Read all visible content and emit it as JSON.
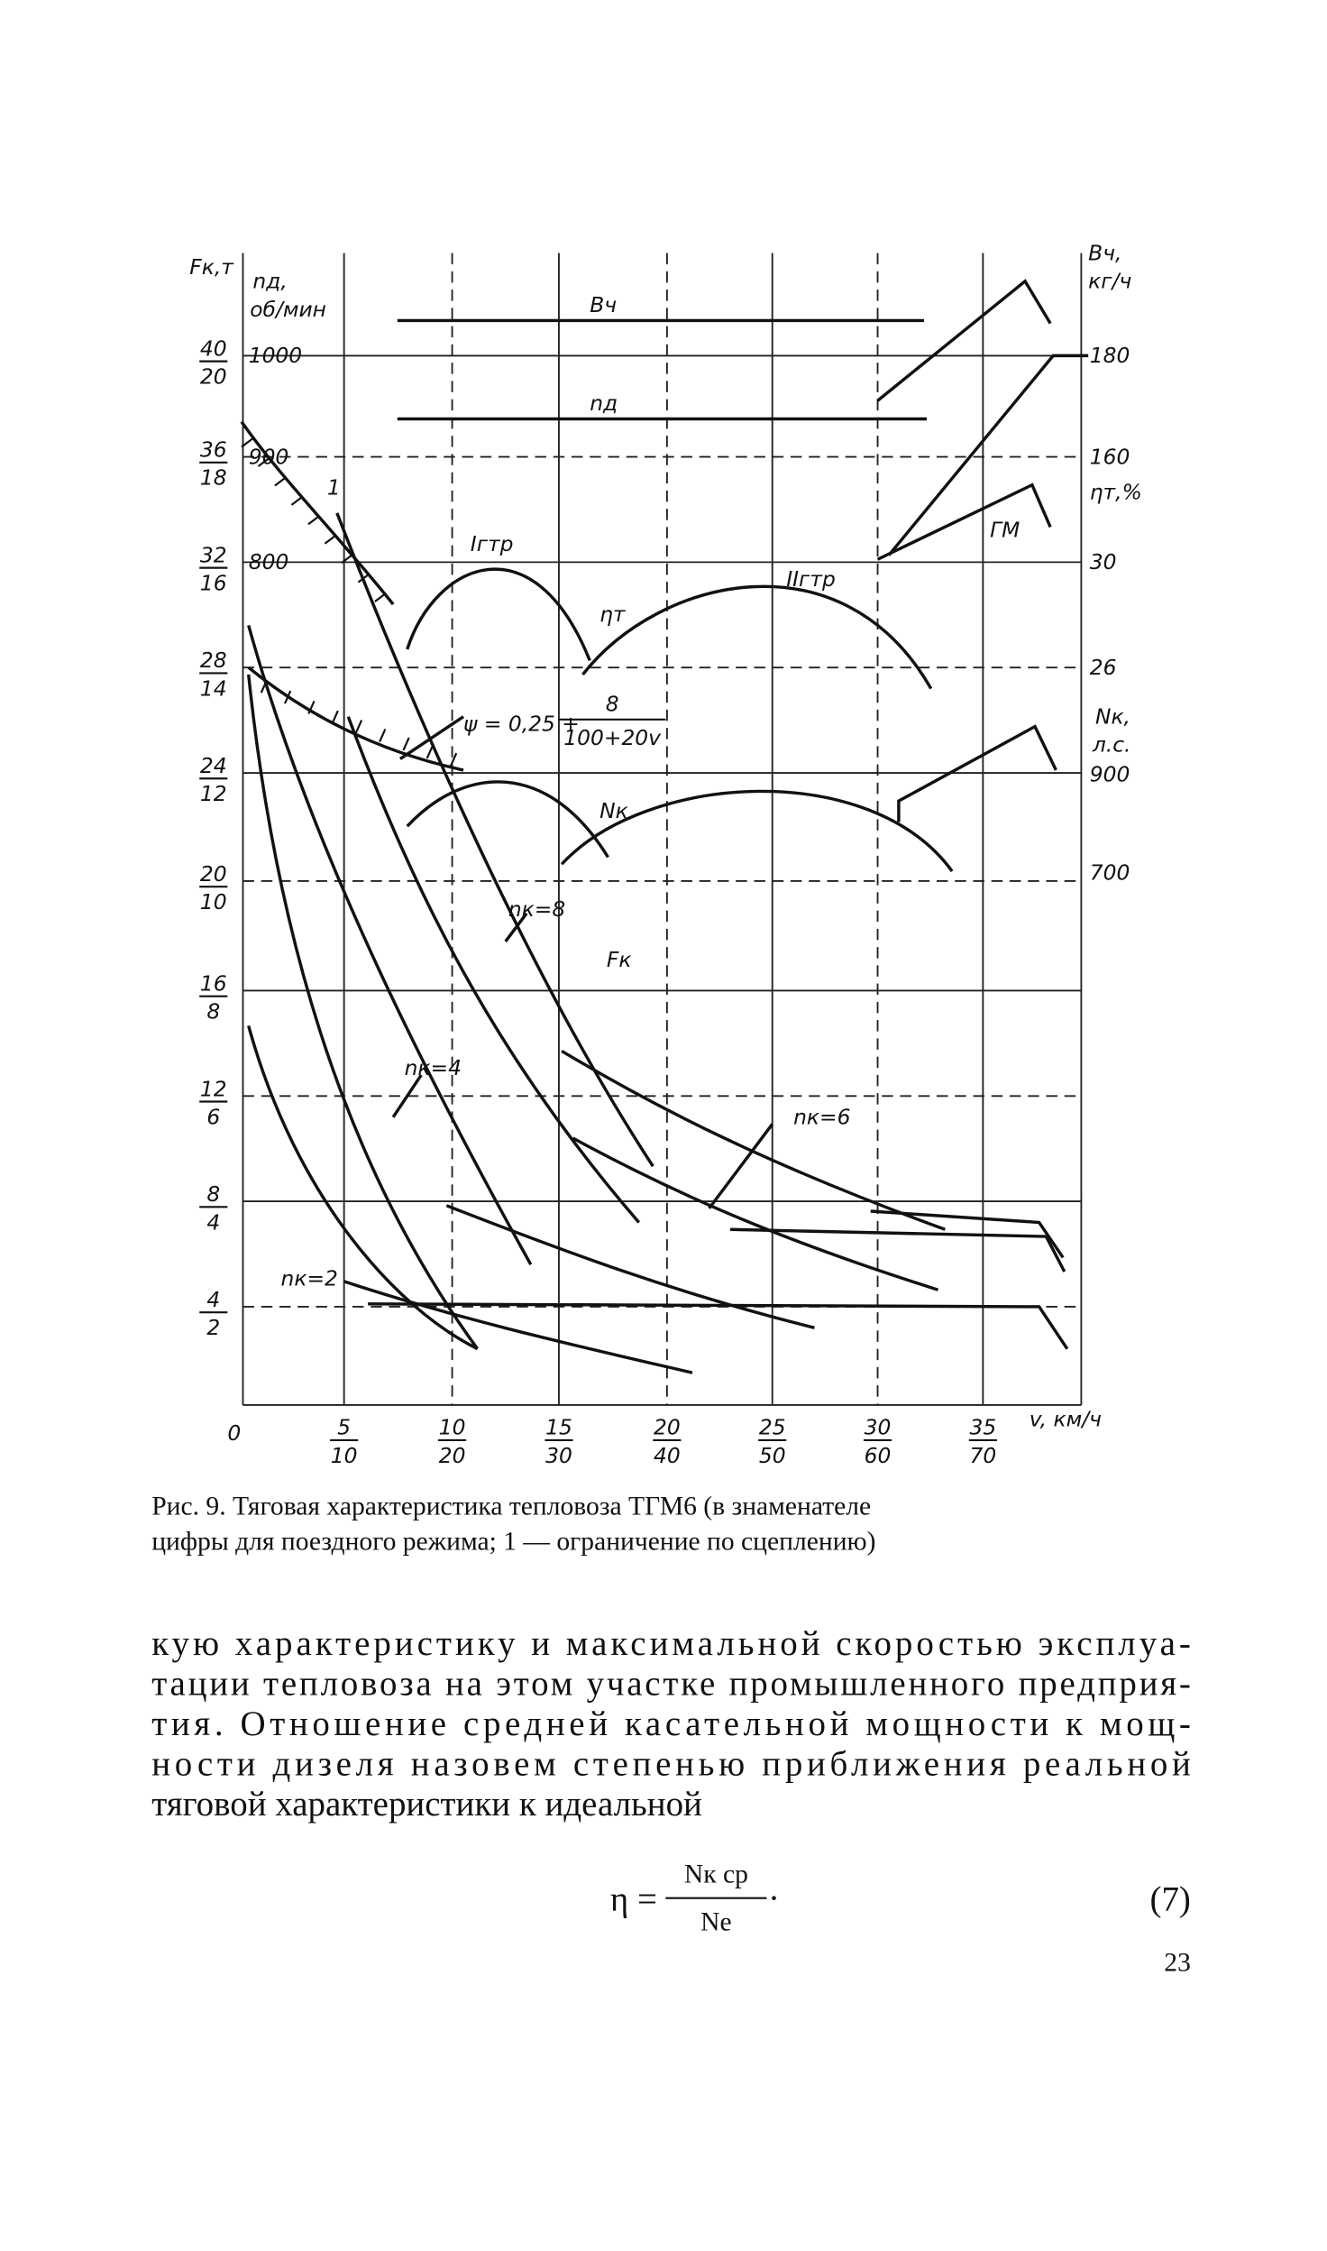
{
  "figure": {
    "y_axis_label": "Fк,т",
    "rpm_label": "nд,",
    "rpm_unit": "об/мин",
    "rpm_ticks": [
      "1000",
      "900",
      "800"
    ],
    "y_ticks": [
      {
        "num": "40",
        "den": "20"
      },
      {
        "num": "36",
        "den": "18"
      },
      {
        "num": "32",
        "den": "16"
      },
      {
        "num": "28",
        "den": "14"
      },
      {
        "num": "24",
        "den": "12"
      },
      {
        "num": "20",
        "den": "10"
      },
      {
        "num": "16",
        "den": "8"
      },
      {
        "num": "12",
        "den": "6"
      },
      {
        "num": "8",
        "den": "4"
      },
      {
        "num": "4",
        "den": "2"
      }
    ],
    "origin": "0",
    "x_ticks": [
      {
        "num": "5",
        "den": "10"
      },
      {
        "num": "10",
        "den": "20"
      },
      {
        "num": "15",
        "den": "30"
      },
      {
        "num": "20",
        "den": "40"
      },
      {
        "num": "25",
        "den": "50"
      },
      {
        "num": "30",
        "den": "60"
      },
      {
        "num": "35",
        "den": "70"
      }
    ],
    "x_axis_label": "v, км/ч",
    "right_labels": {
      "b_label": "Bч,",
      "b_unit": "кг/ч",
      "b_ticks": [
        "180",
        "160"
      ],
      "eta_label": "ηт,%",
      "eta_ticks": [
        "30",
        "26"
      ],
      "n_label": "Nк,",
      "n_unit": "л.с.",
      "n_ticks": [
        "900",
        "700"
      ]
    },
    "curve_labels": {
      "b": "Bч",
      "nd": "nд",
      "i_gtr": "Iгтр",
      "ii_gtr": "IIгтр",
      "eta": "ηт",
      "psi": "ψ = 0,25 +",
      "psi_num": "8",
      "psi_den": "100+20v",
      "nk": "Nк",
      "nk8": "nк=8",
      "fk": "Fк",
      "nk4": "nк=4",
      "nk6": "nк=6",
      "nk2": "nк=2",
      "one": "1",
      "gm": "ГМ"
    }
  },
  "caption": [
    "Рис. 9. Тяговая характеристика тепловоза ТГМ6 (в знаменателе",
    "цифры для поездного режима; 1 — ограничение по сцеплению)"
  ],
  "paragraph": [
    "кую характеристику и максимальной скоростью эксплуа-",
    "тации тепловоза на этом участке промышленного предприя-",
    "тия. Отношение средней касательной мощности к мощ-",
    "ности дизеля назовем степенью приближения реальной",
    "тяговой характеристики к идеальной"
  ],
  "formula": {
    "lhs": "η =",
    "num": "Nк ср",
    "den": "Nе",
    "end": ".",
    "number": "(7)"
  },
  "page_number": "23"
}
